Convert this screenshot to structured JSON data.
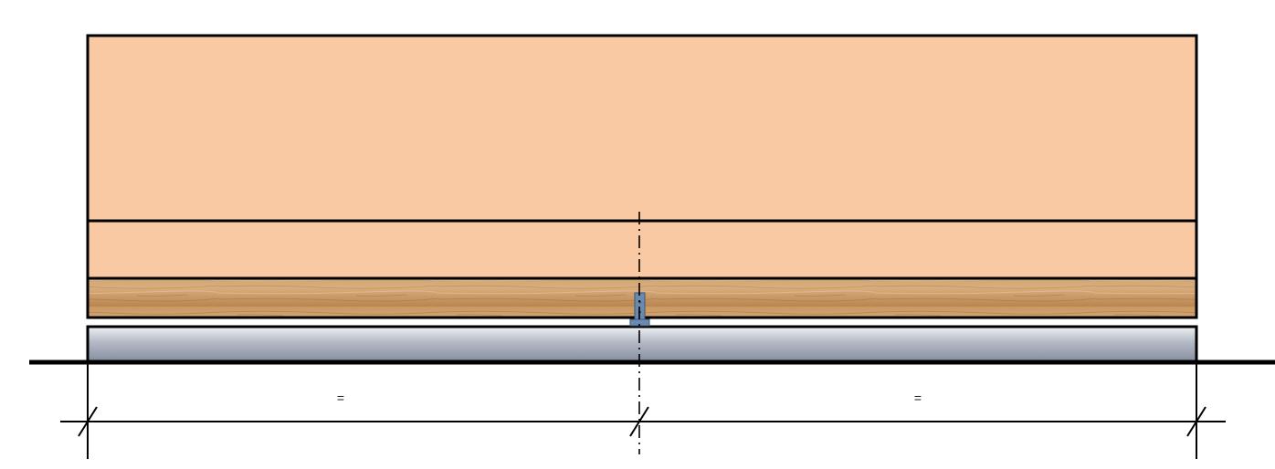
{
  "drawing": {
    "dimension_left_label": "=",
    "dimension_right_label": "="
  },
  "colors": {
    "background": "#ffffff",
    "wall_fill": "#f9c9a4",
    "timber_beam": "#c48c55",
    "foundation_top": "#e4e6ea",
    "foundation_bottom": "#8b93a4",
    "bracket": "#6a8ab0",
    "line": "#000000"
  },
  "icons": [
    "wood-grain-texture",
    "steel-bracket",
    "dimension-tick",
    "center-axis-line"
  ]
}
